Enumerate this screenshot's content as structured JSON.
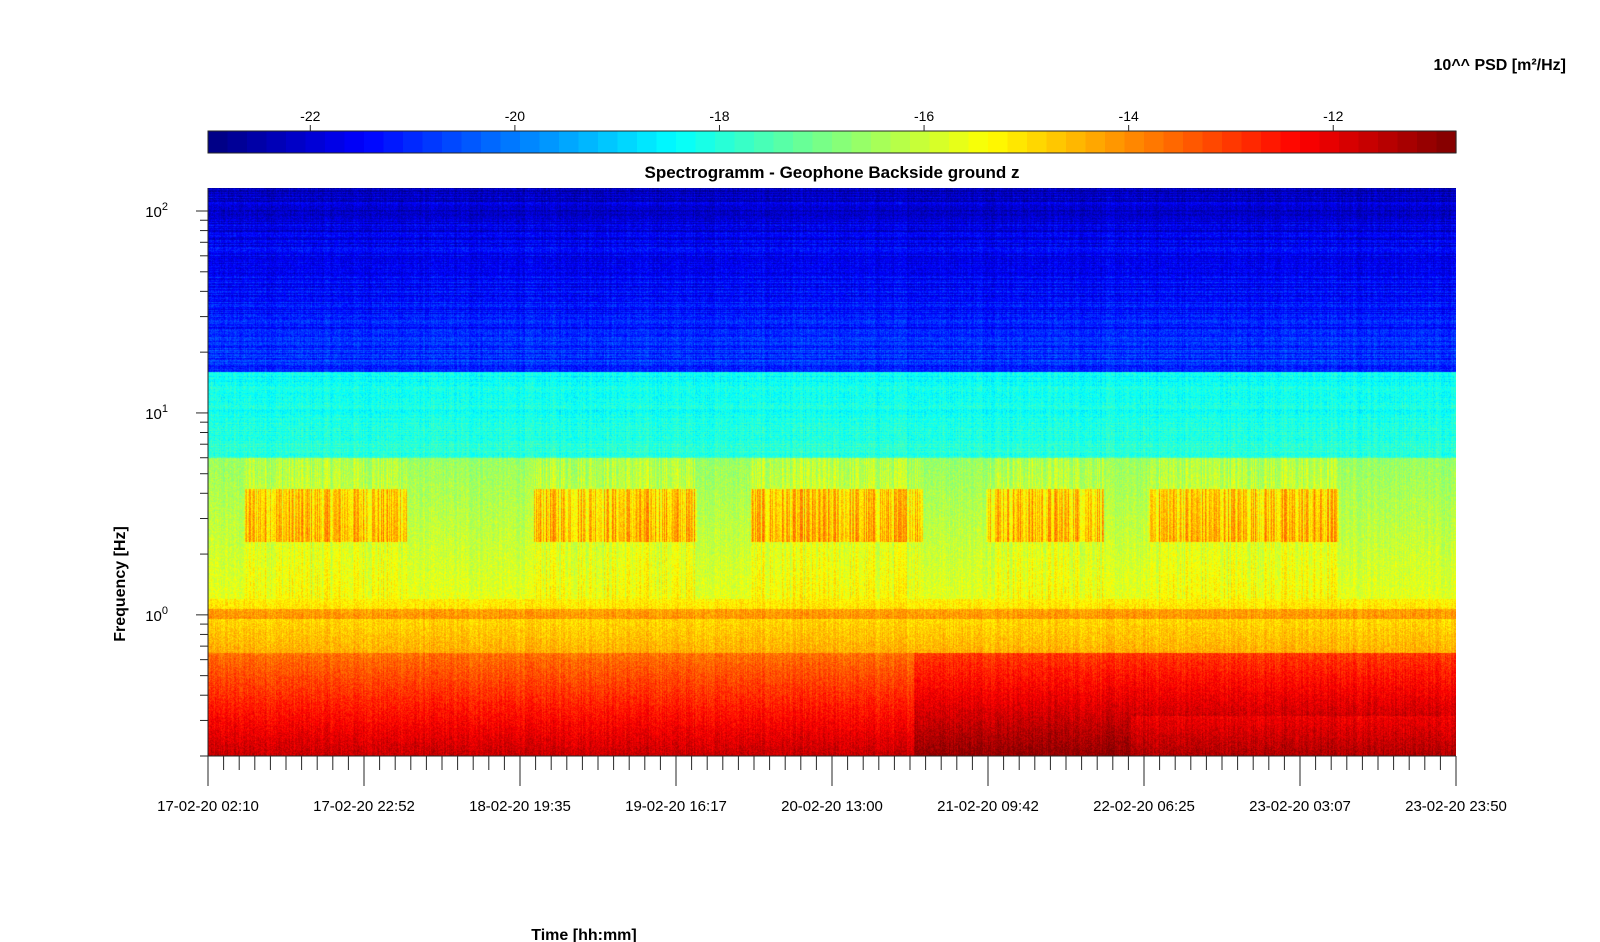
{
  "chart_data": {
    "type": "heatmap",
    "title": "Spectrogramm - Geophone Backside ground z",
    "xlabel": "Time [hh:mm]",
    "ylabel": "Frequency [Hz]",
    "x_ticks": [
      "17-02-20 02:10",
      "17-02-20 22:52",
      "18-02-20 19:35",
      "19-02-20 16:17",
      "20-02-20 13:00",
      "21-02-20 09:42",
      "22-02-20 06:25",
      "23-02-20 03:07",
      "23-02-20 23:50"
    ],
    "y_scale": "log",
    "ylim": [
      0.2,
      130
    ],
    "y_ticks": [
      {
        "value": 100,
        "base": "10",
        "exp": "2"
      },
      {
        "value": 10,
        "base": "10",
        "exp": "1"
      },
      {
        "value": 1,
        "base": "10",
        "exp": "0"
      }
    ],
    "colorbar": {
      "label": "10^^ PSD [m²/Hz]",
      "range": [
        -23,
        -10.8
      ],
      "ticks": [
        "-22",
        "-20",
        "-18",
        "-16",
        "-14",
        "-12"
      ],
      "colormap": "jet"
    },
    "features": {
      "high_freq_band_log10_psd": -21.5,
      "mid_freq_band_log10_psd": -18.0,
      "day_activity_band_hz": [
        2.5,
        4.0
      ],
      "microseism_band_log10_psd": -12.0,
      "line_at_1hz": true,
      "activity_day_spans": [
        [
          0.2,
          1.1
        ],
        [
          1.8,
          2.7
        ],
        [
          3.0,
          3.95
        ],
        [
          4.3,
          4.95
        ],
        [
          5.2,
          6.25
        ]
      ]
    }
  }
}
